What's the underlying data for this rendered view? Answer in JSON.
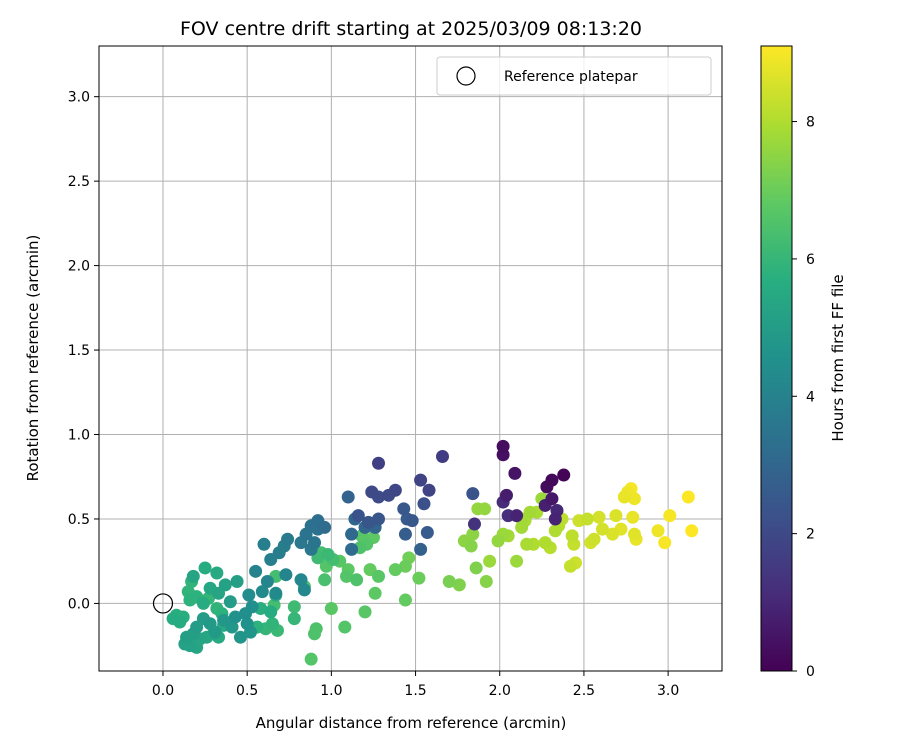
{
  "chart_data": {
    "type": "scatter",
    "title": "FOV centre drift starting at 2025/03/09 08:13:20",
    "xlabel": "Angular distance from reference (arcmin)",
    "ylabel": "Rotation from reference (arcmin)",
    "xlim": [
      -0.38,
      3.32
    ],
    "ylim": [
      -0.4,
      3.3
    ],
    "xticks": [
      0.0,
      0.5,
      1.0,
      1.5,
      2.0,
      2.5,
      3.0
    ],
    "xtick_labels": [
      "0.0",
      "0.5",
      "1.0",
      "1.5",
      "2.0",
      "2.5",
      "3.0"
    ],
    "yticks": [
      0.0,
      0.5,
      1.0,
      1.5,
      2.0,
      2.5,
      3.0
    ],
    "ytick_labels": [
      "0.0",
      "0.5",
      "1.0",
      "1.5",
      "2.0",
      "2.5",
      "3.0"
    ],
    "grid": true,
    "legend": {
      "location": "upper-right",
      "entries": [
        "Reference platepar"
      ]
    },
    "reference_point": {
      "x": 0.0,
      "y": 0.0,
      "label": "Reference platepar"
    },
    "colorbar": {
      "label": "Hours from first FF file",
      "colormap": "viridis",
      "range": [
        0,
        9.1
      ],
      "ticks": [
        0,
        2,
        4,
        6,
        8
      ],
      "tick_labels": [
        "0",
        "2",
        "4",
        "6",
        "8"
      ]
    },
    "points": [
      [
        2.02,
        0.93,
        0.3
      ],
      [
        2.02,
        0.88,
        0.4
      ],
      [
        2.09,
        0.77,
        0.5
      ],
      [
        2.38,
        0.76,
        0.1
      ],
      [
        2.31,
        0.73,
        0.2
      ],
      [
        2.28,
        0.69,
        0.25
      ],
      [
        2.04,
        0.64,
        0.7
      ],
      [
        2.31,
        0.62,
        0.6
      ],
      [
        2.27,
        0.58,
        0.8
      ],
      [
        2.1,
        0.52,
        0.9
      ],
      [
        2.34,
        0.55,
        1.0
      ],
      [
        2.33,
        0.5,
        0.9
      ],
      [
        2.05,
        0.52,
        1.2
      ],
      [
        1.85,
        0.47,
        1.3
      ],
      [
        2.02,
        0.6,
        1.1
      ],
      [
        1.66,
        0.87,
        1.6
      ],
      [
        1.28,
        0.83,
        1.7
      ],
      [
        1.53,
        0.73,
        1.8
      ],
      [
        1.38,
        0.67,
        1.9
      ],
      [
        1.58,
        0.67,
        1.8
      ],
      [
        1.24,
        0.66,
        2.0
      ],
      [
        1.28,
        0.63,
        2.1
      ],
      [
        1.34,
        0.64,
        2.0
      ],
      [
        1.55,
        0.59,
        2.2
      ],
      [
        1.84,
        0.65,
        2.3
      ],
      [
        1.16,
        0.52,
        2.3
      ],
      [
        1.22,
        0.48,
        2.4
      ],
      [
        1.28,
        0.5,
        2.4
      ],
      [
        1.43,
        0.56,
        2.5
      ],
      [
        1.45,
        0.5,
        2.6
      ],
      [
        1.48,
        0.49,
        2.5
      ],
      [
        1.44,
        0.41,
        2.7
      ],
      [
        1.57,
        0.42,
        2.6
      ],
      [
        1.53,
        0.32,
        2.8
      ],
      [
        1.26,
        0.45,
        2.9
      ],
      [
        1.1,
        0.63,
        2.9
      ],
      [
        1.14,
        0.5,
        3.0
      ],
      [
        1.2,
        0.45,
        3.0
      ],
      [
        1.12,
        0.41,
        3.1
      ],
      [
        1.12,
        0.32,
        3.2
      ],
      [
        0.96,
        0.45,
        3.2
      ],
      [
        0.92,
        0.49,
        3.3
      ],
      [
        0.88,
        0.46,
        3.4
      ],
      [
        0.92,
        0.44,
        3.4
      ],
      [
        0.85,
        0.41,
        3.5
      ],
      [
        0.9,
        0.36,
        3.5
      ],
      [
        0.82,
        0.36,
        3.6
      ],
      [
        0.88,
        0.32,
        3.6
      ],
      [
        0.74,
        0.38,
        3.7
      ],
      [
        0.72,
        0.34,
        3.8
      ],
      [
        0.69,
        0.3,
        3.8
      ],
      [
        0.64,
        0.26,
        3.9
      ],
      [
        0.6,
        0.35,
        3.9
      ],
      [
        0.55,
        0.19,
        4.0
      ],
      [
        0.62,
        0.13,
        4.1
      ],
      [
        0.73,
        0.17,
        4.1
      ],
      [
        0.82,
        0.14,
        4.2
      ],
      [
        0.84,
        0.08,
        4.2
      ],
      [
        0.67,
        0.06,
        4.3
      ],
      [
        0.59,
        0.07,
        4.3
      ],
      [
        0.51,
        0.05,
        4.4
      ],
      [
        0.53,
        -0.02,
        4.5
      ],
      [
        0.49,
        -0.06,
        4.5
      ],
      [
        0.43,
        -0.08,
        4.6
      ],
      [
        0.5,
        -0.12,
        4.6
      ],
      [
        0.46,
        -0.2,
        4.7
      ],
      [
        0.52,
        -0.17,
        4.7
      ],
      [
        0.41,
        -0.14,
        4.8
      ],
      [
        0.36,
        -0.1,
        4.8
      ],
      [
        0.31,
        -0.17,
        4.9
      ],
      [
        0.28,
        -0.12,
        4.9
      ],
      [
        0.24,
        -0.09,
        5.0
      ],
      [
        0.2,
        -0.14,
        5.0
      ],
      [
        0.18,
        -0.18,
        5.1
      ],
      [
        0.14,
        -0.2,
        5.1
      ],
      [
        0.13,
        -0.24,
        5.2
      ],
      [
        0.16,
        -0.25,
        5.2
      ],
      [
        0.2,
        -0.26,
        5.3
      ],
      [
        0.22,
        -0.21,
        5.3
      ],
      [
        0.26,
        -0.2,
        5.4
      ],
      [
        0.3,
        -0.18,
        5.4
      ],
      [
        0.33,
        -0.2,
        5.5
      ],
      [
        0.36,
        -0.13,
        5.5
      ],
      [
        0.1,
        -0.11,
        5.6
      ],
      [
        0.06,
        -0.09,
        5.6
      ],
      [
        0.08,
        -0.07,
        5.7
      ],
      [
        0.12,
        -0.08,
        5.7
      ],
      [
        0.16,
        0.02,
        5.8
      ],
      [
        0.2,
        0.04,
        5.8
      ],
      [
        0.15,
        0.07,
        5.9
      ],
      [
        0.17,
        0.13,
        5.9
      ],
      [
        0.18,
        0.16,
        5.3
      ],
      [
        0.25,
        0.21,
        5.6
      ],
      [
        0.32,
        0.18,
        5.5
      ],
      [
        0.28,
        0.09,
        5.4
      ],
      [
        0.33,
        0.06,
        5.3
      ],
      [
        0.37,
        0.11,
        5.2
      ],
      [
        0.44,
        0.13,
        5.1
      ],
      [
        0.4,
        0.01,
        5.0
      ],
      [
        0.24,
        0.0,
        5.6
      ],
      [
        0.27,
        0.03,
        6.0
      ],
      [
        0.32,
        -0.03,
        5.9
      ],
      [
        0.35,
        -0.06,
        5.8
      ],
      [
        0.58,
        -0.03,
        5.7
      ],
      [
        0.64,
        -0.05,
        5.6
      ],
      [
        0.67,
        0.05,
        5.5
      ],
      [
        0.56,
        -0.14,
        5.8
      ],
      [
        0.61,
        -0.15,
        6.0
      ],
      [
        0.65,
        -0.12,
        5.9
      ],
      [
        0.68,
        -0.16,
        6.1
      ],
      [
        0.78,
        -0.09,
        6.0
      ],
      [
        0.78,
        -0.02,
        6.2
      ],
      [
        0.66,
        -0.01,
        6.3
      ],
      [
        0.67,
        0.16,
        6.3
      ],
      [
        0.84,
        0.1,
        6.4
      ],
      [
        0.91,
        -0.15,
        6.5
      ],
      [
        0.9,
        -0.18,
        6.5
      ],
      [
        0.88,
        -0.33,
        6.6
      ],
      [
        1.0,
        -0.03,
        6.7
      ],
      [
        1.08,
        -0.14,
        6.6
      ],
      [
        1.2,
        -0.05,
        6.7
      ],
      [
        0.92,
        0.27,
        6.2
      ],
      [
        0.94,
        0.3,
        6.3
      ],
      [
        0.98,
        0.29,
        6.1
      ],
      [
        1.01,
        0.26,
        6.3
      ],
      [
        0.96,
        0.14,
        6.4
      ],
      [
        0.97,
        0.22,
        6.6
      ],
      [
        1.05,
        0.25,
        6.7
      ],
      [
        1.1,
        0.2,
        6.8
      ],
      [
        1.09,
        0.16,
        6.6
      ],
      [
        1.15,
        0.14,
        6.5
      ],
      [
        1.17,
        0.33,
        6.5
      ],
      [
        1.21,
        0.35,
        6.6
      ],
      [
        1.18,
        0.4,
        6.7
      ],
      [
        1.25,
        0.39,
        6.8
      ],
      [
        1.23,
        0.2,
        6.9
      ],
      [
        1.26,
        0.06,
        6.8
      ],
      [
        1.28,
        0.16,
        6.7
      ],
      [
        1.38,
        0.2,
        6.9
      ],
      [
        1.44,
        0.22,
        7.0
      ],
      [
        1.44,
        0.02,
        6.9
      ],
      [
        1.46,
        0.27,
        7.1
      ],
      [
        1.52,
        0.15,
        7.0
      ],
      [
        1.7,
        0.13,
        7.2
      ],
      [
        1.76,
        0.11,
        7.3
      ],
      [
        1.86,
        0.21,
        7.3
      ],
      [
        1.92,
        0.13,
        7.4
      ],
      [
        1.79,
        0.37,
        7.5
      ],
      [
        1.83,
        0.34,
        7.4
      ],
      [
        1.84,
        0.41,
        7.5
      ],
      [
        1.87,
        0.56,
        7.6
      ],
      [
        1.91,
        0.56,
        7.6
      ],
      [
        1.94,
        0.25,
        7.7
      ],
      [
        1.99,
        0.37,
        7.6
      ],
      [
        2.02,
        0.41,
        7.7
      ],
      [
        2.05,
        0.4,
        7.8
      ],
      [
        2.1,
        0.25,
        7.7
      ],
      [
        2.13,
        0.45,
        7.8
      ],
      [
        2.13,
        0.5,
        7.8
      ],
      [
        2.15,
        0.49,
        7.9
      ],
      [
        2.16,
        0.35,
        7.9
      ],
      [
        2.18,
        0.54,
        7.8
      ],
      [
        2.2,
        0.35,
        8.0
      ],
      [
        2.22,
        0.54,
        7.9
      ],
      [
        2.25,
        0.62,
        7.7
      ],
      [
        2.27,
        0.36,
        8.0
      ],
      [
        2.3,
        0.33,
        8.1
      ],
      [
        2.33,
        0.43,
        8.0
      ],
      [
        2.35,
        0.46,
        8.1
      ],
      [
        2.37,
        0.5,
        8.2
      ],
      [
        2.42,
        0.22,
        8.3
      ],
      [
        2.43,
        0.4,
        8.2
      ],
      [
        2.44,
        0.35,
        8.3
      ],
      [
        2.45,
        0.24,
        8.4
      ],
      [
        2.47,
        0.49,
        8.4
      ],
      [
        2.52,
        0.5,
        8.3
      ],
      [
        2.54,
        0.36,
        8.5
      ],
      [
        2.56,
        0.38,
        8.4
      ],
      [
        2.59,
        0.51,
        8.5
      ],
      [
        2.61,
        0.44,
        8.5
      ],
      [
        2.67,
        0.41,
        8.6
      ],
      [
        2.69,
        0.52,
        8.6
      ],
      [
        2.72,
        0.44,
        8.7
      ],
      [
        2.74,
        0.63,
        8.8
      ],
      [
        2.76,
        0.66,
        8.9
      ],
      [
        2.78,
        0.68,
        9.0
      ],
      [
        2.79,
        0.51,
        8.8
      ],
      [
        2.8,
        0.62,
        8.9
      ],
      [
        2.8,
        0.41,
        8.7
      ],
      [
        2.81,
        0.38,
        8.8
      ],
      [
        2.94,
        0.43,
        8.9
      ],
      [
        2.98,
        0.36,
        9.0
      ],
      [
        3.01,
        0.52,
        9.0
      ],
      [
        3.12,
        0.63,
        9.1
      ],
      [
        3.14,
        0.43,
        9.1
      ]
    ]
  }
}
